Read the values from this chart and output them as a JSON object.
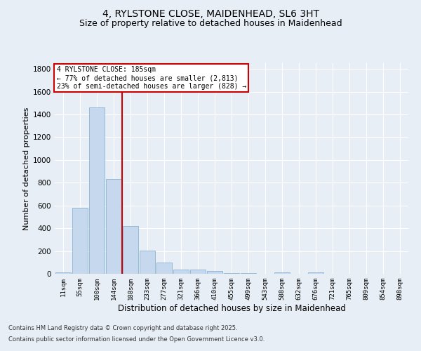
{
  "title1": "4, RYLSTONE CLOSE, MAIDENHEAD, SL6 3HT",
  "title2": "Size of property relative to detached houses in Maidenhead",
  "xlabel": "Distribution of detached houses by size in Maidenhead",
  "ylabel": "Number of detached properties",
  "categories": [
    "11sqm",
    "55sqm",
    "100sqm",
    "144sqm",
    "188sqm",
    "233sqm",
    "277sqm",
    "321sqm",
    "366sqm",
    "410sqm",
    "455sqm",
    "499sqm",
    "543sqm",
    "588sqm",
    "632sqm",
    "676sqm",
    "721sqm",
    "765sqm",
    "809sqm",
    "854sqm",
    "898sqm"
  ],
  "values": [
    15,
    580,
    1460,
    830,
    420,
    205,
    100,
    40,
    35,
    25,
    5,
    5,
    0,
    15,
    0,
    10,
    0,
    0,
    0,
    0,
    0
  ],
  "bar_color": "#c5d8ee",
  "bar_edge_color": "#7aabcf",
  "vline_x_index": 4,
  "vline_color": "#cc0000",
  "annotation_title": "4 RYLSTONE CLOSE: 185sqm",
  "annotation_line1": "← 77% of detached houses are smaller (2,813)",
  "annotation_line2": "23% of semi-detached houses are larger (828) →",
  "annotation_box_color": "#cc0000",
  "annotation_bg": "#ffffff",
  "ylim": [
    0,
    1850
  ],
  "yticks": [
    0,
    200,
    400,
    600,
    800,
    1000,
    1200,
    1400,
    1600,
    1800
  ],
  "footer1": "Contains HM Land Registry data © Crown copyright and database right 2025.",
  "footer2": "Contains public sector information licensed under the Open Government Licence v3.0.",
  "bg_color": "#e8eef5",
  "grid_color": "#ffffff",
  "title_fontsize": 10,
  "subtitle_fontsize": 9
}
